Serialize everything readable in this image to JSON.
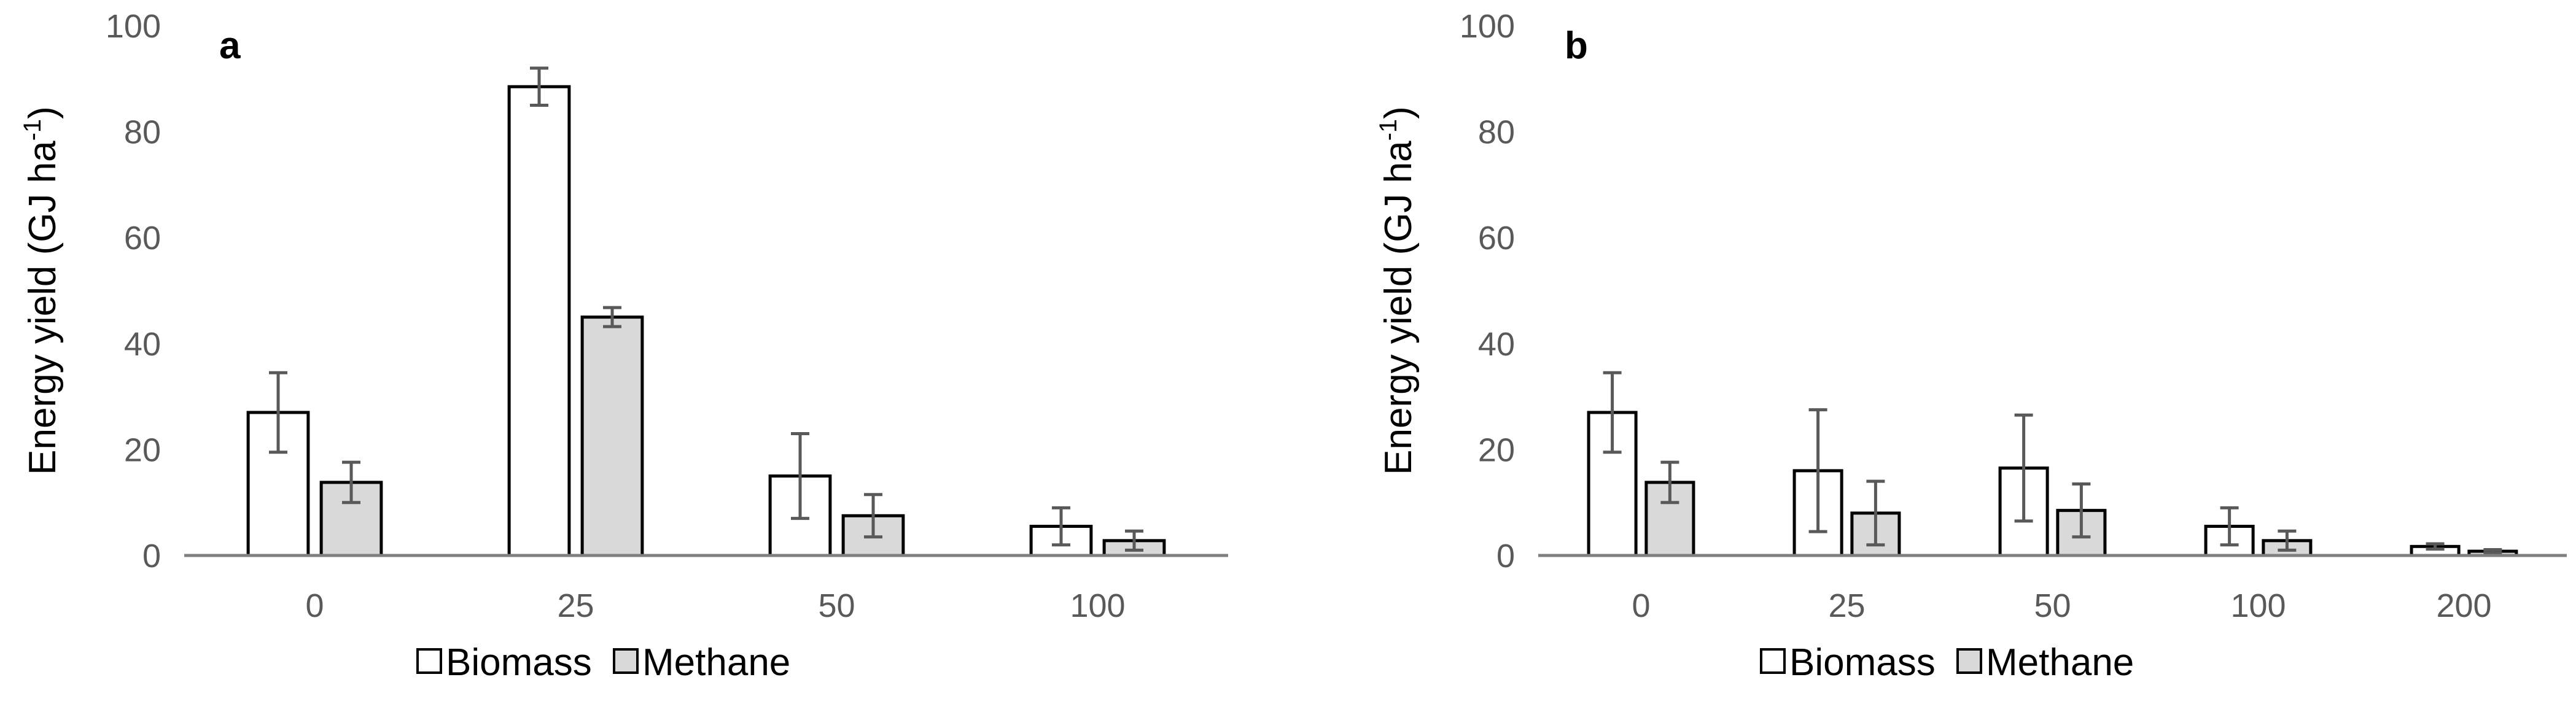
{
  "chart_data": [
    {
      "type": "bar",
      "panel_label": "a",
      "ylabel": "Energy yield (GJ ha",
      "ylabel_sup": "-1",
      "ylabel_end": ")",
      "ylim": [
        0,
        100
      ],
      "yticks": [
        0,
        20,
        40,
        60,
        80,
        100
      ],
      "grid": false,
      "legend_position": "bottom",
      "categories": [
        "0",
        "25",
        "50",
        "100"
      ],
      "series": [
        {
          "name": "Biomass",
          "color": "#ffffff",
          "values": [
            27,
            88.5,
            15,
            5.5
          ],
          "errors": [
            7.5,
            3.5,
            8,
            3.5
          ]
        },
        {
          "name": "Methane",
          "color": "#d9d9d9",
          "values": [
            13.8,
            45,
            7.5,
            2.8
          ],
          "errors": [
            3.8,
            1.8,
            4,
            1.8
          ]
        }
      ]
    },
    {
      "type": "bar",
      "panel_label": "b",
      "ylabel": "Energy yield (GJ ha",
      "ylabel_sup": "-1",
      "ylabel_end": ")",
      "ylim": [
        0,
        100
      ],
      "yticks": [
        0,
        20,
        40,
        60,
        80,
        100
      ],
      "grid": false,
      "legend_position": "bottom",
      "categories": [
        "0",
        "25",
        "50",
        "100",
        "200"
      ],
      "series": [
        {
          "name": "Biomass",
          "color": "#ffffff",
          "values": [
            27,
            16,
            16.5,
            5.5,
            1.7
          ],
          "errors": [
            7.5,
            11.5,
            10,
            3.5,
            0.5
          ]
        },
        {
          "name": "Methane",
          "color": "#d9d9d9",
          "values": [
            13.8,
            8,
            8.5,
            2.8,
            0.8
          ],
          "errors": [
            3.8,
            6,
            5,
            1.8,
            0.3
          ]
        }
      ]
    }
  ]
}
